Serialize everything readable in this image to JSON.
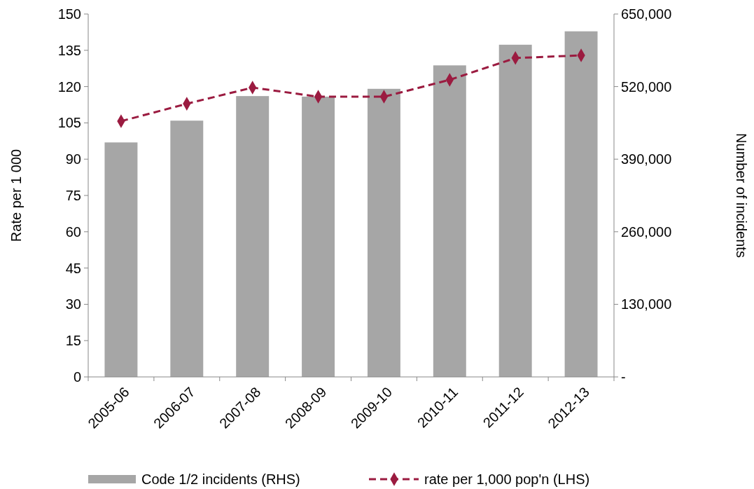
{
  "chart_data": {
    "type": "bar",
    "categories": [
      "2005-06",
      "2006-07",
      "2007-08",
      "2008-09",
      "2009-10",
      "2010-11",
      "2011-12",
      "2012-13"
    ],
    "ylabel": "Rate per 1 000",
    "y2label": "Number of incidents",
    "ylim": [
      0,
      150
    ],
    "yticks": [
      0,
      15,
      30,
      45,
      60,
      75,
      90,
      105,
      120,
      135,
      150
    ],
    "y2lim": [
      0,
      650000
    ],
    "y2ticks": [
      {
        "value": 0,
        "label": "-"
      },
      {
        "value": 130000,
        "label": "130,000"
      },
      {
        "value": 260000,
        "label": "260,000"
      },
      {
        "value": 390000,
        "label": "390,000"
      },
      {
        "value": 520000,
        "label": "520,000"
      },
      {
        "value": 650000,
        "label": "650,000"
      }
    ],
    "series": [
      {
        "name": "Code 1/2 incidents (RHS)",
        "axis": "y2",
        "color": "#a6a6a6",
        "values": [
          420000,
          459000,
          503000,
          502000,
          516000,
          558000,
          595000,
          619000
        ]
      },
      {
        "name": "rate per 1,000 pop'n (LHS)",
        "type": "line",
        "color": "#9b1b40",
        "marker": "diamond",
        "line_style": "dashed",
        "values": [
          105.7,
          112.9,
          119.6,
          115.8,
          115.8,
          122.8,
          131.8,
          132.9
        ]
      }
    ],
    "grid": false,
    "legend": "bottom"
  }
}
